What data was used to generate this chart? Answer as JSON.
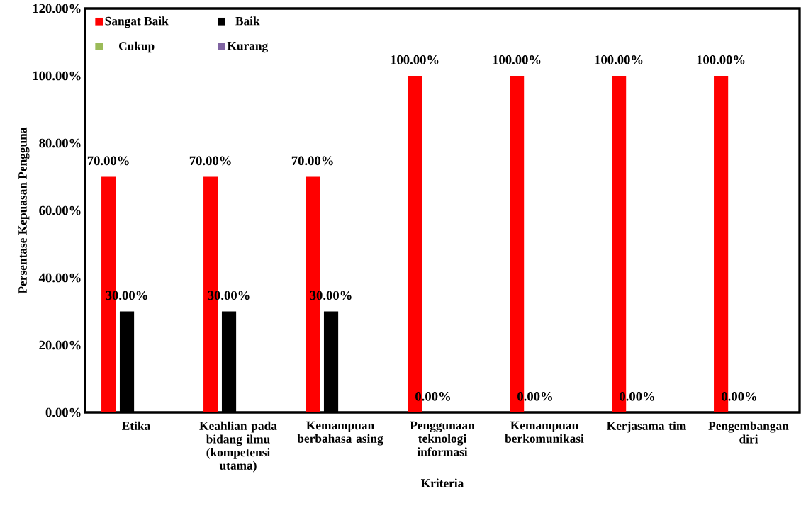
{
  "chart_data": {
    "type": "bar",
    "xlabel": "Kriteria",
    "ylabel": "Persentase Kepuasan Pengguna",
    "categories": [
      "Etika",
      "Keahlian pada bidang ilmu (kompetensi utama)",
      "Kemampuan berbahasa asing",
      "Penggunaan teknologi informasi",
      "Kemampuan berkomunikasi",
      "Kerjasama tim",
      "Pengembangan diri"
    ],
    "series": [
      {
        "name": "Sangat Baik",
        "color": "#ff0000",
        "values": [
          70,
          70,
          70,
          100,
          100,
          100,
          100
        ],
        "value_labels": [
          "70.00%",
          "70.00%",
          "70.00%",
          "100.00%",
          "100.00%",
          "100.00%",
          "100.00%"
        ]
      },
      {
        "name": "Baik",
        "color": "#000000",
        "values": [
          30,
          30,
          30,
          0,
          0,
          0,
          0
        ],
        "value_labels": [
          "30.00%",
          "30.00%",
          "30.00%",
          "0.00%",
          "0.00%",
          "0.00%",
          "0.00%"
        ]
      },
      {
        "name": "Cukup",
        "color": "#9bbb59",
        "values": [
          0,
          0,
          0,
          0,
          0,
          0,
          0
        ]
      },
      {
        "name": "Kurang",
        "color": "#8064a2",
        "values": [
          0,
          0,
          0,
          0,
          0,
          0,
          0
        ]
      }
    ],
    "ylim": [
      0,
      120
    ],
    "yticks": [
      {
        "value": 0,
        "label": "0.00%"
      },
      {
        "value": 20,
        "label": "20.00%"
      },
      {
        "value": 40,
        "label": "40.00%"
      },
      {
        "value": 60,
        "label": "60.00%"
      },
      {
        "value": 80,
        "label": "80.00%"
      },
      {
        "value": 100,
        "label": "100.00%"
      },
      {
        "value": 120,
        "label": "120.00%"
      }
    ],
    "grid": false,
    "legend": "top left"
  }
}
